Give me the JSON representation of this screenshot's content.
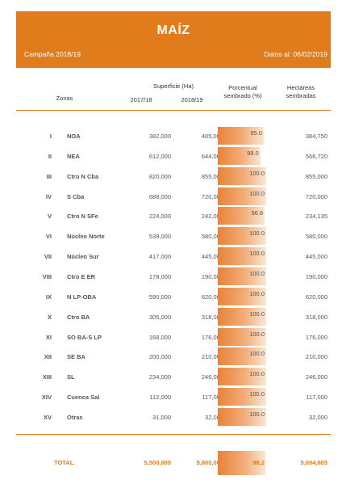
{
  "header": {
    "title": "MAÍZ",
    "campaign": "Campaña 2018/19",
    "date": "Datos al: 06/02/2019"
  },
  "columns": {
    "superficie": "Superficie (Ha)",
    "zonas": "Zonas",
    "y1": "2017/18",
    "y2": "2018/19",
    "pct_line1": "Porcentual",
    "pct_line2": "sembrado (%)",
    "ha_line1": "Hectáreas",
    "ha_line2": "sembradas"
  },
  "colors": {
    "accent": "#e07c1c"
  },
  "rows": [
    {
      "num": "I",
      "zone": "NOA",
      "v1": "382,000",
      "v2": "405,000",
      "pct": 95.0,
      "pct_label": "95.0",
      "ha": "384,750"
    },
    {
      "num": "II",
      "zone": "NEA",
      "v1": "612,000",
      "v2": "644,000",
      "pct": 88.0,
      "pct_label": "88.0",
      "ha": "566,720"
    },
    {
      "num": "III",
      "zone": "Ctro N Cba",
      "v1": "820,000",
      "v2": "855,000",
      "pct": 100.0,
      "pct_label": "100.0",
      "ha": "855,000"
    },
    {
      "num": "IV",
      "zone": "S Cba",
      "v1": "688,000",
      "v2": "720,000",
      "pct": 100.0,
      "pct_label": "100.0",
      "ha": "720,000"
    },
    {
      "num": "V",
      "zone": "Ctro N SFe",
      "v1": "224,000",
      "v2": "242,000",
      "pct": 96.8,
      "pct_label": "96.8",
      "ha": "234,135"
    },
    {
      "num": "VI",
      "zone": "Núcleo Norte",
      "v1": "539,000",
      "v2": "580,000",
      "pct": 100.0,
      "pct_label": "100.0",
      "ha": "580,000"
    },
    {
      "num": "VII",
      "zone": "Núcleo Sur",
      "v1": "417,000",
      "v2": "445,000",
      "pct": 100.0,
      "pct_label": "100.0",
      "ha": "445,000"
    },
    {
      "num": "VIII",
      "zone": "Ctro E ER",
      "v1": "178,000",
      "v2": "190,000",
      "pct": 100.0,
      "pct_label": "100.0",
      "ha": "190,000"
    },
    {
      "num": "IX",
      "zone": "N LP-OBA",
      "v1": "590,000",
      "v2": "620,000",
      "pct": 100.0,
      "pct_label": "100.0",
      "ha": "620,000"
    },
    {
      "num": "X",
      "zone": "Ctro BA",
      "v1": "305,000",
      "v2": "318,000",
      "pct": 100.0,
      "pct_label": "100.0",
      "ha": "318,000"
    },
    {
      "num": "XI",
      "zone": "SO BA-S LP",
      "v1": "168,000",
      "v2": "176,000",
      "pct": 100.0,
      "pct_label": "100.0",
      "ha": "176,000"
    },
    {
      "num": "XII",
      "zone": "SE BA",
      "v1": "200,000",
      "v2": "210,000",
      "pct": 100.0,
      "pct_label": "100.0",
      "ha": "210,000"
    },
    {
      "num": "XIII",
      "zone": "SL",
      "v1": "234,000",
      "v2": "246,000",
      "pct": 100.0,
      "pct_label": "100.0",
      "ha": "246,000"
    },
    {
      "num": "XIV",
      "zone": "Cuenca Sal",
      "v1": "112,000",
      "v2": "117,000",
      "pct": 100.0,
      "pct_label": "100.0",
      "ha": "117,000"
    },
    {
      "num": "XV",
      "zone": "Otras",
      "v1": "31,000",
      "v2": "32,000",
      "pct": 100.0,
      "pct_label": "100.0",
      "ha": "32,000"
    }
  ],
  "total": {
    "label": "TOTAL",
    "v1": "5,500,000",
    "v2": "5,800,000",
    "pct": 98.2,
    "pct_label": "98.2",
    "ha": "5,694,605"
  }
}
